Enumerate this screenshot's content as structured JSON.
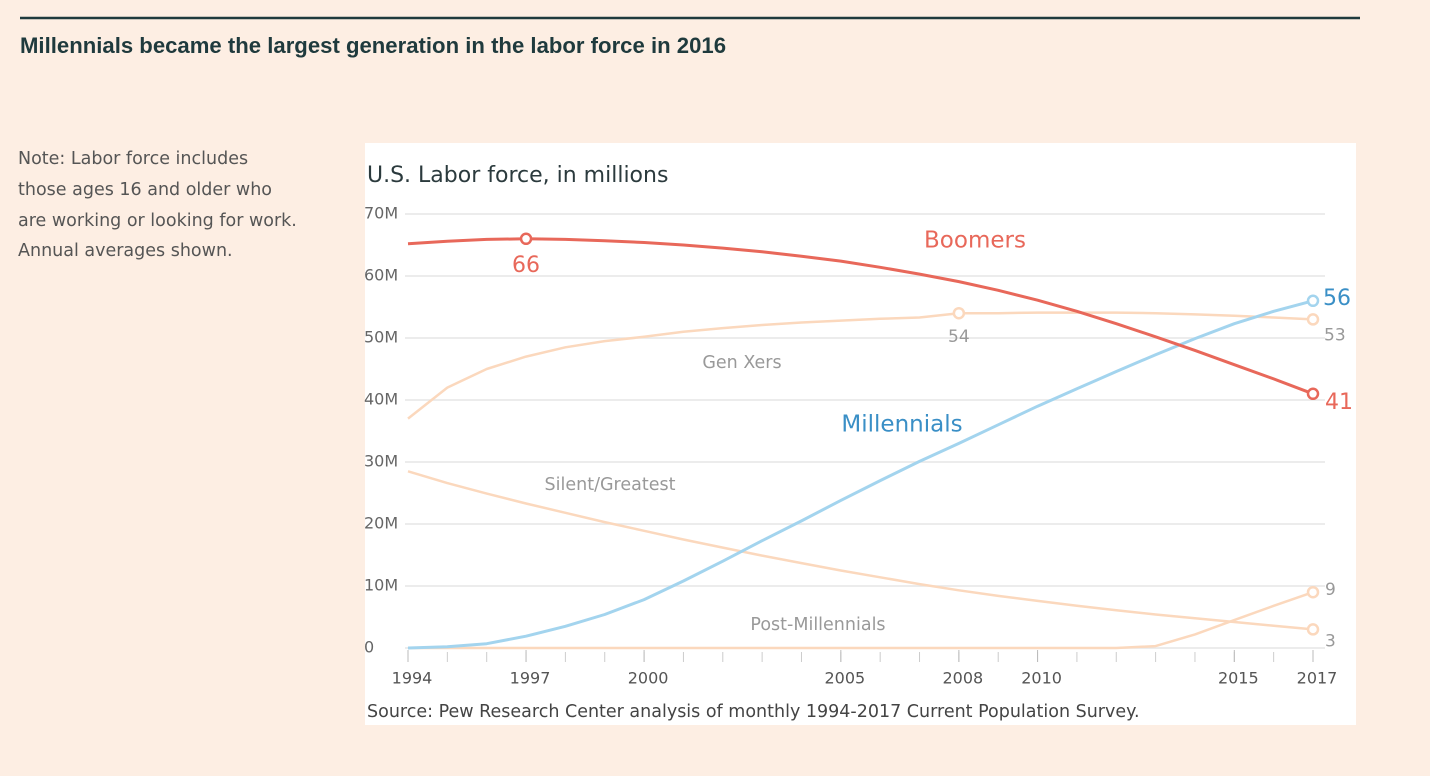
{
  "title": "Millennials became the largest generation in the labor force in 2016",
  "note": [
    "Note: Labor force includes",
    "those ages 16 and older who",
    "are working or looking for work.",
    "Annual averages shown."
  ],
  "chart_data": {
    "type": "line",
    "title": "U.S. Labor force, in millions",
    "source": "Source: Pew Research Center analysis of monthly 1994-2017 Current Population Survey.",
    "x": [
      1994,
      1995,
      1996,
      1997,
      1998,
      1999,
      2000,
      2001,
      2002,
      2003,
      2004,
      2005,
      2006,
      2007,
      2008,
      2009,
      2010,
      2011,
      2012,
      2013,
      2014,
      2015,
      2016,
      2017
    ],
    "xlim": [
      1994,
      2017
    ],
    "xticks": [
      1994,
      1997,
      2000,
      2005,
      2008,
      2010,
      2015,
      2017
    ],
    "ylim": [
      0,
      70
    ],
    "yticks": [
      0,
      {
        "value": 10,
        "label": "10M"
      },
      {
        "value": 20,
        "label": "20M"
      },
      {
        "value": 30,
        "label": "30M"
      },
      {
        "value": 40,
        "label": "40M"
      },
      {
        "value": 50,
        "label": "50M"
      },
      {
        "value": 60,
        "label": "60M"
      },
      {
        "value": 70,
        "label": "70M"
      }
    ],
    "grid": true,
    "series": [
      {
        "name": "Boomers",
        "color": "#e8685a",
        "values": [
          65.2,
          65.6,
          65.9,
          66,
          65.9,
          65.7,
          65.4,
          65,
          64.5,
          63.9,
          63.2,
          62.4,
          61.4,
          60.3,
          59.1,
          57.7,
          56.1,
          54.3,
          52.3,
          50.2,
          48,
          45.7,
          43.4,
          41
        ]
      },
      {
        "name": "Gen Xers",
        "color": "#fbd8bd",
        "values": [
          37,
          42,
          45,
          47,
          48.5,
          49.5,
          50.2,
          51,
          51.6,
          52.1,
          52.5,
          52.8,
          53.1,
          53.3,
          54,
          54,
          54.1,
          54.1,
          54.1,
          54,
          53.8,
          53.6,
          53.3,
          53
        ]
      },
      {
        "name": "Millennials",
        "color": "#a3d4ee",
        "values": [
          0,
          0.2,
          0.7,
          1.9,
          3.5,
          5.4,
          7.8,
          10.8,
          14,
          17.3,
          20.5,
          23.8,
          27,
          30.1,
          33,
          36,
          39,
          41.8,
          44.6,
          47.3,
          49.9,
          52.3,
          54.3,
          56
        ]
      },
      {
        "name": "Silent/Greatest",
        "color": "#fbd8bd",
        "values": [
          28.5,
          26.6,
          24.9,
          23.3,
          21.8,
          20.3,
          18.9,
          17.5,
          16.2,
          14.9,
          13.7,
          12.5,
          11.4,
          10.3,
          9.3,
          8.4,
          7.6,
          6.8,
          6.1,
          5.4,
          4.8,
          4.2,
          3.6,
          3
        ]
      },
      {
        "name": "Post-Millennials",
        "color": "#fbd8bd",
        "values": [
          0,
          0,
          0,
          0,
          0,
          0,
          0,
          0,
          0,
          0,
          0,
          0,
          0,
          0,
          0,
          0,
          0,
          0,
          0,
          0.3,
          2.2,
          4.5,
          6.8,
          9
        ]
      }
    ]
  }
}
